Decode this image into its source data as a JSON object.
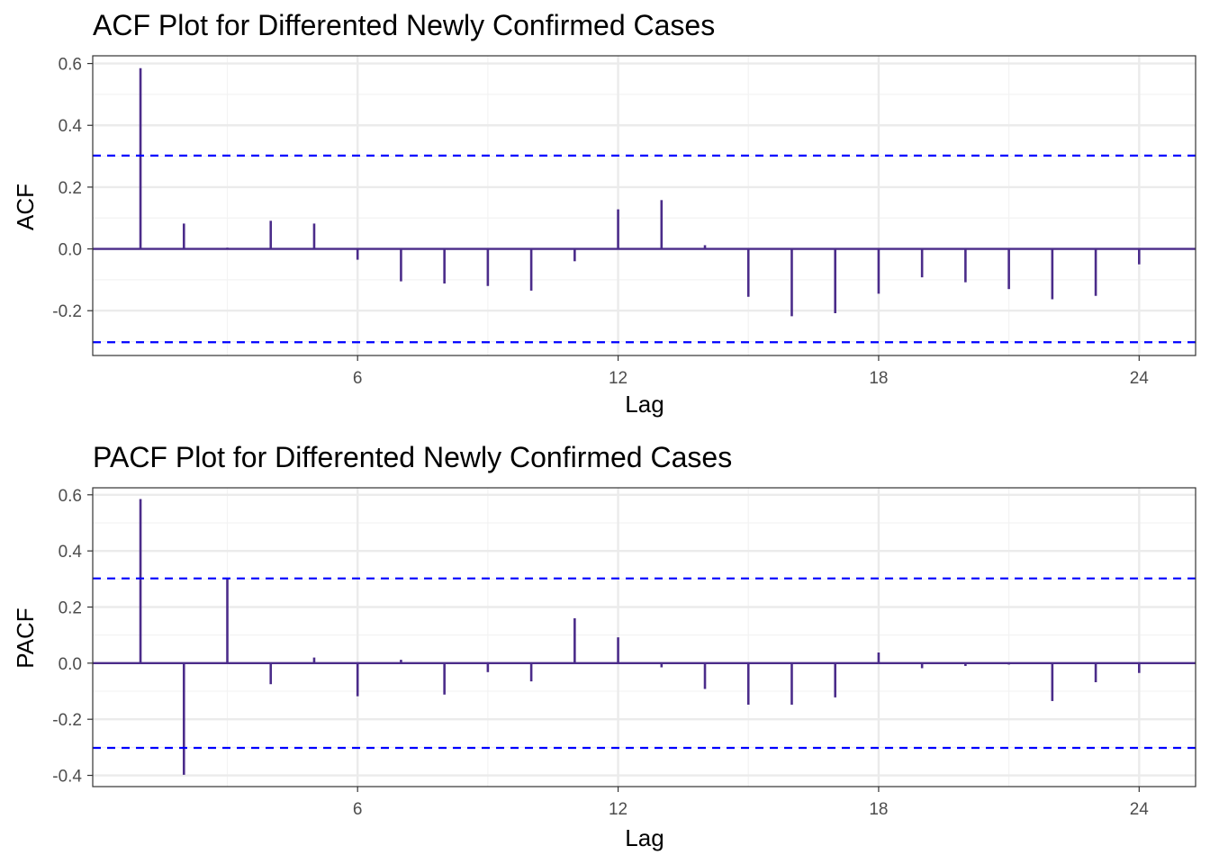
{
  "colors": {
    "bar": "#4B2C8A",
    "ci_line": "#0000FF",
    "grid_major": "#EBEBEB",
    "grid_minor": "#F3F3F3",
    "panel_border": "#333333"
  },
  "chart_data": [
    {
      "type": "bar",
      "title": "ACF Plot for Differented Newly Confirmed Cases",
      "xlabel": "Lag",
      "ylabel": "ACF",
      "xlim": [
        -0.1,
        25.3
      ],
      "ylim": [
        -0.345,
        0.625
      ],
      "xticks": [
        6,
        12,
        18,
        24
      ],
      "yticks": [
        -0.2,
        0.0,
        0.2,
        0.4,
        0.6
      ],
      "ytick_labels": [
        "-0.2",
        "0.0",
        "0.2",
        "0.4",
        "0.6"
      ],
      "ci": [
        -0.302,
        0.302
      ],
      "grid": true,
      "lags": [
        1,
        2,
        3,
        4,
        5,
        6,
        7,
        8,
        9,
        10,
        11,
        12,
        13,
        14,
        15,
        16,
        17,
        18,
        19,
        20,
        21,
        22,
        23,
        24
      ],
      "values": [
        0.585,
        0.082,
        0.004,
        0.091,
        0.082,
        -0.035,
        -0.105,
        -0.112,
        -0.12,
        -0.135,
        -0.04,
        0.128,
        0.158,
        0.012,
        -0.155,
        -0.218,
        -0.208,
        -0.145,
        -0.092,
        -0.108,
        -0.13,
        -0.163,
        -0.152,
        -0.05
      ]
    },
    {
      "type": "bar",
      "title": "PACF Plot for Differented Newly Confirmed Cases",
      "xlabel": "Lag",
      "ylabel": "PACF",
      "xlim": [
        -0.1,
        25.3
      ],
      "ylim": [
        -0.44,
        0.625
      ],
      "xticks": [
        6,
        12,
        18,
        24
      ],
      "yticks": [
        -0.4,
        -0.2,
        0.0,
        0.2,
        0.4,
        0.6
      ],
      "ytick_labels": [
        "-0.4",
        "-0.2",
        "0.0",
        "0.2",
        "0.4",
        "0.6"
      ],
      "ci": [
        -0.302,
        0.302
      ],
      "grid": true,
      "lags": [
        1,
        2,
        3,
        4,
        5,
        6,
        7,
        8,
        9,
        10,
        11,
        12,
        13,
        14,
        15,
        16,
        17,
        18,
        19,
        20,
        21,
        22,
        23,
        24
      ],
      "values": [
        0.585,
        -0.398,
        0.302,
        -0.075,
        0.02,
        -0.118,
        0.012,
        -0.112,
        -0.032,
        -0.065,
        0.16,
        0.092,
        -0.015,
        -0.092,
        -0.148,
        -0.148,
        -0.122,
        0.038,
        -0.018,
        -0.01,
        -0.005,
        -0.135,
        -0.068,
        -0.035
      ]
    }
  ]
}
